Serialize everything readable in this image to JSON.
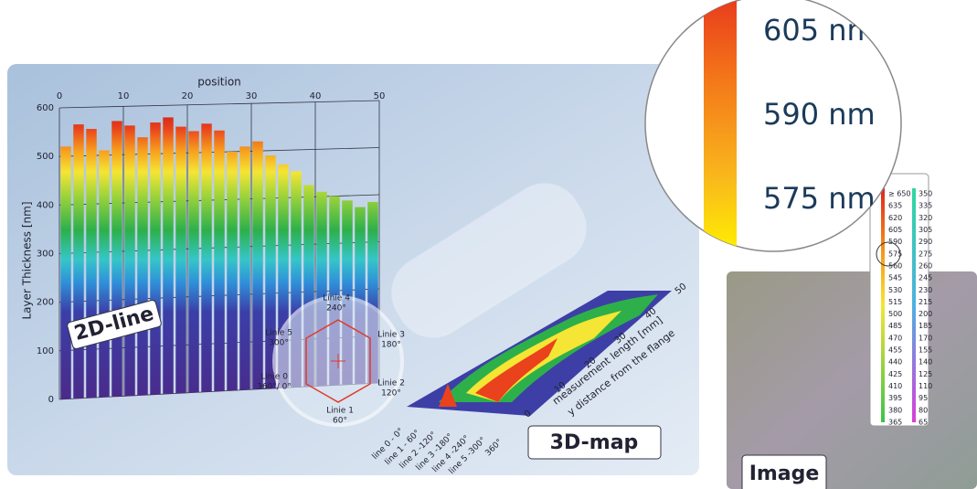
{
  "chart_data": {
    "type": "bar",
    "title": "position",
    "y_label": "Layer Thickness [nm]",
    "annotation": "2D-line",
    "x": [
      1,
      3,
      5,
      7,
      9,
      11,
      13,
      15,
      17,
      19,
      21,
      23,
      25,
      27,
      29,
      31,
      33,
      35,
      37,
      39,
      41,
      43,
      45,
      47,
      49
    ],
    "values": [
      520,
      565,
      555,
      510,
      570,
      560,
      535,
      565,
      575,
      555,
      545,
      560,
      545,
      500,
      510,
      520,
      490,
      470,
      455,
      425,
      410,
      400,
      390,
      375,
      385
    ],
    "xlim": [
      0,
      50
    ],
    "xticks": [
      0,
      10,
      20,
      30,
      40,
      50
    ],
    "ylim": [
      0,
      600
    ],
    "yticks": [
      0,
      100,
      200,
      300,
      400,
      500,
      600
    ],
    "grid": true
  },
  "map": {
    "annotation": "3D-map",
    "axis_label": "measurement length [mm]",
    "axis_label_2": "y distance from the flange",
    "ticks": [
      0,
      10,
      20,
      30,
      40,
      50
    ],
    "lines": [
      "line 0 - 0°",
      "line 1 - 60°",
      "line 2 -120°",
      "line 3 -180°",
      "line 4 -240°",
      "line 5 -300°",
      "360°"
    ]
  },
  "diagram": {
    "points": [
      {
        "label": "Linie 4",
        "angle": "240°"
      },
      {
        "label": "Linie 3",
        "angle": "180°"
      },
      {
        "label": "Linie 2",
        "angle": "120°"
      },
      {
        "label": "Linie 1",
        "angle": "60°"
      },
      {
        "label": "Linie 0",
        "angle": "360°/ 0°"
      },
      {
        "label": "Linie 5",
        "angle": "300°"
      }
    ]
  },
  "scale": {
    "left": [
      "≥ 650",
      "635",
      "620",
      "605",
      "590",
      "575",
      "560",
      "545",
      "530",
      "515",
      "500",
      "485",
      "470",
      "455",
      "440",
      "425",
      "410",
      "395",
      "380",
      "365"
    ],
    "right": [
      350,
      335,
      320,
      305,
      290,
      275,
      260,
      245,
      230,
      215,
      200,
      185,
      170,
      155,
      140,
      125,
      110,
      95,
      80,
      65
    ]
  },
  "magnifier": [
    "605 nm",
    "590 nm",
    "575 nm"
  ],
  "image_label": "Image"
}
